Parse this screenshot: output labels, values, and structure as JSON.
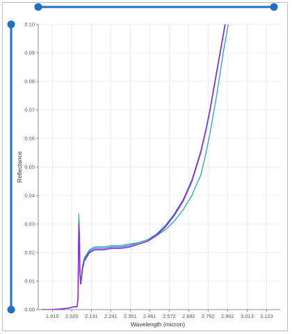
{
  "slider_top": {
    "range": [
      0,
      1
    ]
  },
  "slider_left": {
    "range": [
      0,
      1
    ]
  },
  "colors": {
    "slider": "#1f6fc5",
    "series_1": "#8a2be2",
    "series_2": "#1fa7b0",
    "series_3": "#3b6fd6"
  },
  "chart_data": {
    "type": "line",
    "title": "",
    "xlabel": "Wavelength (micron)",
    "ylabel": "Reflectance",
    "xlim": [
      1.83,
      3.2
    ],
    "ylim": [
      0,
      0.1
    ],
    "x_ticks": [
      "1.910",
      "2.020",
      "2.131",
      "2.241",
      "2.351",
      "2.461",
      "2.572",
      "2.682",
      "2.792",
      "2.902",
      "3.013",
      "3.123"
    ],
    "y_ticks": [
      "0.00",
      "0.01",
      "0.02",
      "0.03",
      "0.04",
      "0.05",
      "0.06",
      "0.07",
      "0.08",
      "0.09",
      "0.10"
    ],
    "grid": true,
    "series": [
      {
        "color": "#8a2be2",
        "x": [
          1.85,
          1.9,
          1.95,
          2.0,
          2.03,
          2.05,
          2.055,
          2.06,
          2.063,
          2.066,
          2.07,
          2.075,
          2.08,
          2.09,
          2.1,
          2.12,
          2.15,
          2.2,
          2.25,
          2.3,
          2.35,
          2.4,
          2.45,
          2.5,
          2.55,
          2.6,
          2.65,
          2.7,
          2.72,
          2.75,
          2.78,
          2.8,
          2.82,
          2.84,
          2.86,
          2.88,
          2.9
        ],
        "y": [
          0.0,
          0.0,
          0.0002,
          0.0005,
          0.001,
          0.001,
          0.004,
          0.03,
          0.025,
          0.013,
          0.009,
          0.011,
          0.014,
          0.017,
          0.018,
          0.02,
          0.021,
          0.021,
          0.0215,
          0.0215,
          0.022,
          0.023,
          0.024,
          0.026,
          0.029,
          0.033,
          0.038,
          0.045,
          0.049,
          0.055,
          0.063,
          0.069,
          0.076,
          0.083,
          0.09,
          0.097,
          0.104
        ]
      },
      {
        "color": "#1fa7b0",
        "x": [
          1.85,
          1.9,
          1.95,
          2.0,
          2.03,
          2.05,
          2.055,
          2.06,
          2.063,
          2.066,
          2.07,
          2.075,
          2.08,
          2.09,
          2.1,
          2.12,
          2.15,
          2.2,
          2.25,
          2.3,
          2.35,
          2.4,
          2.45,
          2.5,
          2.55,
          2.6,
          2.65,
          2.7,
          2.72,
          2.75,
          2.78,
          2.8,
          2.82,
          2.84,
          2.86,
          2.88,
          2.9,
          2.92
        ],
        "y": [
          0.0,
          0.0,
          0.0002,
          0.0005,
          0.001,
          0.001,
          0.004,
          0.0335,
          0.027,
          0.014,
          0.009,
          0.012,
          0.015,
          0.018,
          0.019,
          0.021,
          0.022,
          0.022,
          0.0225,
          0.0225,
          0.023,
          0.0235,
          0.0245,
          0.026,
          0.028,
          0.031,
          0.035,
          0.04,
          0.043,
          0.047,
          0.055,
          0.061,
          0.068,
          0.075,
          0.083,
          0.091,
          0.098,
          0.105
        ]
      },
      {
        "color": "#3b6fd6",
        "x": [
          1.85,
          1.9,
          1.95,
          2.0,
          2.03,
          2.05,
          2.055,
          2.06,
          2.063,
          2.066,
          2.07,
          2.075,
          2.08,
          2.09,
          2.1,
          2.12,
          2.15,
          2.2,
          2.25,
          2.3,
          2.35,
          2.4,
          2.45,
          2.5,
          2.55,
          2.6,
          2.65,
          2.7,
          2.72,
          2.75,
          2.78,
          2.8,
          2.82,
          2.84,
          2.86,
          2.88,
          2.9
        ],
        "y": [
          0.0,
          0.0,
          0.0002,
          0.0005,
          0.001,
          0.001,
          0.004,
          0.031,
          0.026,
          0.0135,
          0.009,
          0.0115,
          0.0145,
          0.0175,
          0.0185,
          0.0205,
          0.0215,
          0.0215,
          0.022,
          0.022,
          0.0225,
          0.0235,
          0.0245,
          0.0265,
          0.0295,
          0.0335,
          0.0385,
          0.0455,
          0.0495,
          0.0555,
          0.0635,
          0.0695,
          0.0765,
          0.0835,
          0.0905,
          0.0975,
          0.1045
        ]
      }
    ]
  }
}
